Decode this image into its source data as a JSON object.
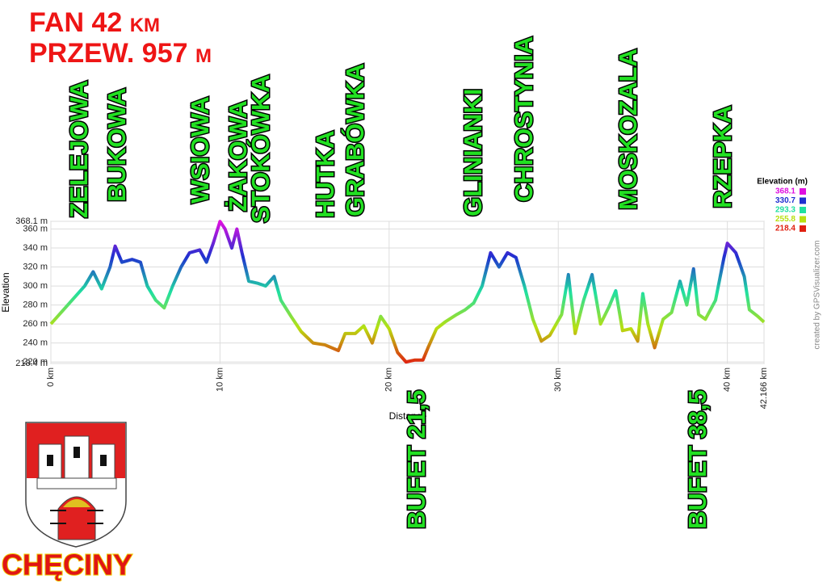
{
  "chart_data": {
    "type": "line",
    "title": "FAN 42 km",
    "subtitle": "PRZEW. 957 m",
    "x_label": "Distance",
    "y_label": "Elevation",
    "x": [
      0,
      0.5,
      1,
      1.5,
      2,
      2.5,
      3,
      3.5,
      3.8,
      4.2,
      4.8,
      5.3,
      5.7,
      6.2,
      6.7,
      7.2,
      7.7,
      8.2,
      8.8,
      9.2,
      9.6,
      10,
      10.3,
      10.7,
      11,
      11.3,
      11.7,
      12.2,
      12.7,
      13.2,
      13.6,
      14.2,
      14.8,
      15.5,
      16.2,
      17,
      17.4,
      18,
      18.5,
      19,
      19.5,
      20,
      20.5,
      21,
      21.5,
      22,
      22.3,
      22.8,
      23.3,
      24,
      24.5,
      25,
      25.5,
      26,
      26.5,
      27,
      27.5,
      28,
      28.5,
      29,
      29.5,
      30.2,
      30.6,
      31,
      31.5,
      32,
      32.5,
      33,
      33.4,
      33.8,
      34.3,
      34.7,
      35,
      35.3,
      35.7,
      36.2,
      36.7,
      37.2,
      37.6,
      38,
      38.3,
      38.7,
      39.3,
      39.8,
      40,
      40.5,
      41,
      41.3,
      41.8,
      42.166
    ],
    "series": [
      {
        "values": [
          260,
          270,
          280,
          290,
          300,
          315,
          297,
          320,
          342,
          325,
          328,
          325,
          300,
          285,
          277,
          300,
          320,
          335,
          338,
          325,
          345,
          368,
          360,
          340,
          360,
          335,
          305,
          303,
          300,
          310,
          285,
          268,
          252,
          240,
          238,
          232,
          250,
          250,
          258,
          240,
          268,
          255,
          230,
          220,
          222,
          222,
          235,
          255,
          262,
          270,
          275,
          282,
          300,
          335,
          320,
          335,
          330,
          300,
          265,
          242,
          248,
          270,
          312,
          250,
          285,
          312,
          260,
          278,
          295,
          253,
          255,
          242,
          292,
          260,
          235,
          265,
          272,
          305,
          280,
          318,
          270,
          265,
          285,
          330,
          345,
          335,
          310,
          275,
          268,
          262
        ]
      }
    ],
    "xlim": [
      0,
      42.166
    ],
    "ylim": [
      218.4,
      368.1
    ],
    "xticks": [
      {
        "value": 0,
        "label": "0 km"
      },
      {
        "value": 10,
        "label": "10 km"
      },
      {
        "value": 20,
        "label": "20 km"
      },
      {
        "value": 30,
        "label": "30 km"
      },
      {
        "value": 40,
        "label": "40 km"
      },
      {
        "value": 42.166,
        "label": "42.166 km"
      }
    ],
    "yticks": [
      {
        "value": 218.4,
        "label": "218.4 m"
      },
      {
        "value": 220,
        "label": "220 m"
      },
      {
        "value": 240,
        "label": "240 m"
      },
      {
        "value": 260,
        "label": "260 m"
      },
      {
        "value": 280,
        "label": "280 m"
      },
      {
        "value": 300,
        "label": "300 m"
      },
      {
        "value": 320,
        "label": "320 m"
      },
      {
        "value": 340,
        "label": "340 m"
      },
      {
        "value": 360,
        "label": "360 m"
      },
      {
        "value": 368.1,
        "label": "368.1 m"
      }
    ],
    "grid": true,
    "legend": {
      "title": "Elevation (m)",
      "stops": [
        {
          "value": 368.1,
          "color": "#e010e0"
        },
        {
          "value": 330.7,
          "color": "#2030d0"
        },
        {
          "value": 293.3,
          "color": "#20e0a0"
        },
        {
          "value": 255.8,
          "color": "#b8e010"
        },
        {
          "value": 218.4,
          "color": "#e02010"
        }
      ]
    },
    "places": [
      "ZELEJOWA",
      "BUKOWA",
      "WSIOWA",
      "ŻAKOWA",
      "STOKÓWKA",
      "HUTKA",
      "GRABÓWKA",
      "GLINIANKI",
      "CHROSTYNIA",
      "MOSKOZALA",
      "RZEPKA"
    ],
    "food_stops": [
      "BUFET 21,5",
      "BUFET 38,5"
    ],
    "town": "CHĘCINY",
    "credit": "created by GPSVisualizer.com"
  }
}
